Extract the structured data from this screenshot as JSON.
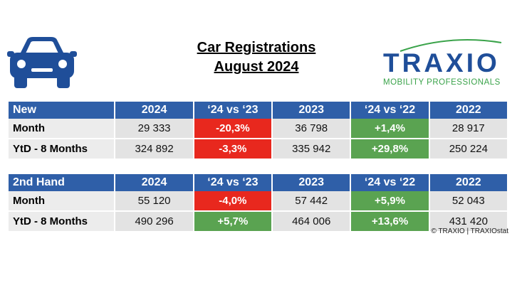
{
  "title": {
    "line1": "Car Registrations",
    "line2": "August 2024"
  },
  "logo": {
    "word": "TRAXIO",
    "tagline": "MOBILITY PROFESSIONALS"
  },
  "colors": {
    "header": "#2f5fa8",
    "negative": "#e8281e",
    "positive": "#5aa351"
  },
  "new_table": {
    "headers": [
      "New",
      "2024",
      "‘24 vs ‘23",
      "2023",
      "‘24 vs ‘22",
      "2022"
    ],
    "rows": [
      {
        "label": "Month",
        "v2024": "29 333",
        "d23": "-20,3%",
        "v2023": "36 798",
        "d22": "+1,4%",
        "v2022": "28 917"
      },
      {
        "label": "YtD - 8 Months",
        "v2024": "324 892",
        "d23": "-3,3%",
        "v2023": "335 942",
        "d22": "+29,8%",
        "v2022": "250 224"
      }
    ]
  },
  "used_table": {
    "headers": [
      "2nd Hand",
      "2024",
      "‘24 vs ‘23",
      "2023",
      "‘24 vs ‘22",
      "2022"
    ],
    "rows": [
      {
        "label": "Month",
        "v2024": "55 120",
        "d23": "-4,0%",
        "v2023": "57 442",
        "d22": "+5,9%",
        "v2022": "52 043"
      },
      {
        "label": "YtD - 8 Months",
        "v2024": "490 296",
        "d23": "+5,7%",
        "v2023": "464 006",
        "d22": "+13,6%",
        "v2022": "431 420"
      }
    ]
  },
  "copyright": "© TRAXIO | TRAXIOstat"
}
